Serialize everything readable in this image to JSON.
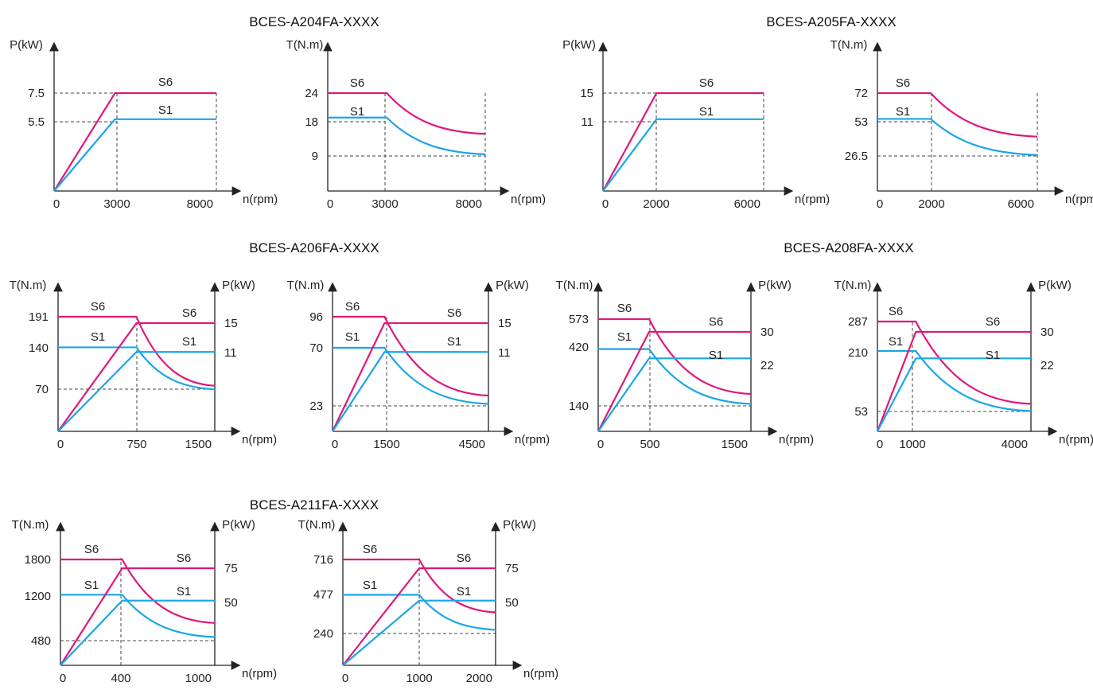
{
  "colors": {
    "s6": "#e0187a",
    "s1": "#1aa6e6",
    "axis": "#222222",
    "guide": "#444444"
  },
  "groups": [
    {
      "title": "BCES-A204FA-XXXX"
    },
    {
      "title": "BCES-A205FA-XXXX"
    },
    {
      "title": "BCES-A206FA-XXXX"
    },
    {
      "title": "BCES-A208FA-XXXX"
    },
    {
      "title": "BCES-A211FA-XXXX"
    }
  ],
  "chart_data": [
    {
      "group": "BCES-A204FA-XXXX",
      "type": "line",
      "y_label": "P(kW)",
      "x_label": "n(rpm)",
      "x_ticks": [
        "0",
        "3000",
        "8000"
      ],
      "y_ticks": [
        "7.5",
        "5.5"
      ],
      "x_range": [
        0,
        8000
      ],
      "series": [
        {
          "name": "S6",
          "x": [
            0,
            3000,
            8000
          ],
          "y": [
            0,
            7.5,
            7.5
          ]
        },
        {
          "name": "S1",
          "x": [
            0,
            3000,
            8000
          ],
          "y": [
            0,
            5.5,
            5.5
          ]
        }
      ]
    },
    {
      "group": "BCES-A204FA-XXXX",
      "type": "line",
      "y_label": "T(N.m)",
      "x_label": "n(rpm)",
      "x_ticks": [
        "0",
        "3000",
        "8000"
      ],
      "y_ticks": [
        "24",
        "18",
        "9"
      ],
      "x_range": [
        0,
        8000
      ],
      "series": [
        {
          "name": "S6",
          "x": [
            0,
            3000,
            8000
          ],
          "y": [
            24,
            24,
            14
          ],
          "curve": "decay"
        },
        {
          "name": "S1",
          "x": [
            0,
            3000,
            8000
          ],
          "y": [
            18,
            18,
            9
          ],
          "curve": "decay"
        }
      ]
    },
    {
      "group": "BCES-A205FA-XXXX",
      "type": "line",
      "y_label": "P(kW)",
      "x_label": "n(rpm)",
      "x_ticks": [
        "0",
        "2000",
        "6000"
      ],
      "y_ticks": [
        "15",
        "11"
      ],
      "x_range": [
        0,
        6000
      ],
      "series": [
        {
          "name": "S6",
          "x": [
            0,
            2000,
            6000
          ],
          "y": [
            0,
            15,
            15
          ]
        },
        {
          "name": "S1",
          "x": [
            0,
            2000,
            6000
          ],
          "y": [
            0,
            11,
            11
          ]
        }
      ]
    },
    {
      "group": "BCES-A205FA-XXXX",
      "type": "line",
      "y_label": "T(N.m)",
      "x_label": "n(rpm)",
      "x_ticks": [
        "0",
        "2000",
        "6000"
      ],
      "y_ticks": [
        "72",
        "53",
        "26.5"
      ],
      "x_range": [
        0,
        6000
      ],
      "series": [
        {
          "name": "S6",
          "x": [
            0,
            2000,
            6000
          ],
          "y": [
            72,
            72,
            40
          ],
          "curve": "decay"
        },
        {
          "name": "S1",
          "x": [
            0,
            2000,
            6000
          ],
          "y": [
            53,
            53,
            26.5
          ],
          "curve": "decay"
        }
      ]
    },
    {
      "group": "BCES-A206FA-XXXX",
      "type": "line",
      "y_label": "T(N.m)",
      "y2_label": "P(kW)",
      "x_label": "n(rpm)",
      "x_ticks": [
        "0",
        "750",
        "1500"
      ],
      "y_ticks": [
        "191",
        "140",
        "70"
      ],
      "y2_ticks": [
        "15",
        "11"
      ],
      "x_range": [
        0,
        1500
      ],
      "series": [
        {
          "name": "S6",
          "axis": "T",
          "x": [
            0,
            750,
            1500
          ],
          "y": [
            191,
            191,
            76
          ],
          "curve": "decay"
        },
        {
          "name": "S1",
          "axis": "T",
          "x": [
            0,
            750,
            1500
          ],
          "y": [
            140,
            140,
            70
          ],
          "curve": "decay"
        },
        {
          "name": "S6",
          "axis": "P",
          "x": [
            0,
            750,
            1500
          ],
          "y": [
            0,
            15,
            15
          ]
        },
        {
          "name": "S1",
          "axis": "P",
          "x": [
            0,
            750,
            1500
          ],
          "y": [
            0,
            11,
            11
          ]
        }
      ]
    },
    {
      "group": "BCES-A206FA-XXXX",
      "type": "line",
      "y_label": "T(N.m)",
      "y2_label": "P(kW)",
      "x_label": "n(rpm)",
      "x_ticks": [
        "0",
        "1500",
        "4500"
      ],
      "y_ticks": [
        "96",
        "70",
        "23"
      ],
      "y2_ticks": [
        "15",
        "11"
      ],
      "x_range": [
        0,
        4500
      ],
      "series": [
        {
          "name": "S6",
          "axis": "T",
          "x": [
            0,
            1500,
            4500
          ],
          "y": [
            96,
            96,
            30
          ],
          "curve": "decay"
        },
        {
          "name": "S1",
          "axis": "T",
          "x": [
            0,
            1500,
            4500
          ],
          "y": [
            70,
            70,
            23
          ],
          "curve": "decay"
        },
        {
          "name": "S6",
          "axis": "P",
          "x": [
            0,
            1500,
            4500
          ],
          "y": [
            0,
            15,
            15
          ]
        },
        {
          "name": "S1",
          "axis": "P",
          "x": [
            0,
            1500,
            4500
          ],
          "y": [
            0,
            11,
            11
          ]
        }
      ]
    },
    {
      "group": "BCES-A208FA-XXXX",
      "type": "line",
      "y_label": "T(N.m)",
      "y2_label": "P(kW)",
      "x_label": "n(rpm)",
      "x_ticks": [
        "0",
        "500",
        "1500"
      ],
      "y_ticks": [
        "573",
        "420",
        "140"
      ],
      "y2_ticks": [
        "30",
        "22"
      ],
      "x_range": [
        0,
        1500
      ],
      "series": [
        {
          "name": "S6",
          "axis": "T",
          "x": [
            0,
            500,
            1500
          ],
          "y": [
            573,
            573,
            191
          ],
          "curve": "decay"
        },
        {
          "name": "S1",
          "axis": "T",
          "x": [
            0,
            500,
            1500
          ],
          "y": [
            420,
            420,
            140
          ],
          "curve": "decay"
        },
        {
          "name": "S6",
          "axis": "P",
          "x": [
            0,
            500,
            1500
          ],
          "y": [
            0,
            30,
            30
          ]
        },
        {
          "name": "S1",
          "axis": "P",
          "x": [
            0,
            500,
            1500
          ],
          "y": [
            0,
            22,
            22
          ]
        }
      ]
    },
    {
      "group": "BCES-A208FA-XXXX",
      "type": "line",
      "y_label": "T(N.m)",
      "y2_label": "P(kW)",
      "x_label": "n(rpm)",
      "x_ticks": [
        "0",
        "1000",
        "4000"
      ],
      "y_ticks": [
        "287",
        "210",
        "53"
      ],
      "y2_ticks": [
        "30",
        "22"
      ],
      "x_range": [
        0,
        4000
      ],
      "series": [
        {
          "name": "S6",
          "axis": "T",
          "x": [
            0,
            1000,
            4000
          ],
          "y": [
            287,
            287,
            72
          ],
          "curve": "decay"
        },
        {
          "name": "S1",
          "axis": "T",
          "x": [
            0,
            1000,
            4000
          ],
          "y": [
            210,
            210,
            53
          ],
          "curve": "decay"
        },
        {
          "name": "S6",
          "axis": "P",
          "x": [
            0,
            1000,
            4000
          ],
          "y": [
            0,
            30,
            30
          ]
        },
        {
          "name": "S1",
          "axis": "P",
          "x": [
            0,
            1000,
            4000
          ],
          "y": [
            0,
            22,
            22
          ]
        }
      ]
    },
    {
      "group": "BCES-A211FA-XXXX",
      "type": "line",
      "y_label": "T(N.m)",
      "y2_label": "P(kW)",
      "x_label": "n(rpm)",
      "x_ticks": [
        "0",
        "400",
        "1000"
      ],
      "y_ticks": [
        "1800",
        "1200",
        "480"
      ],
      "y2_ticks": [
        "75",
        "50"
      ],
      "x_range": [
        0,
        1000
      ],
      "series": [
        {
          "name": "S6",
          "axis": "T",
          "x": [
            0,
            400,
            1000
          ],
          "y": [
            1800,
            1800,
            720
          ],
          "curve": "decay"
        },
        {
          "name": "S1",
          "axis": "T",
          "x": [
            0,
            400,
            1000
          ],
          "y": [
            1200,
            1200,
            480
          ],
          "curve": "decay"
        },
        {
          "name": "S6",
          "axis": "P",
          "x": [
            0,
            400,
            1000
          ],
          "y": [
            0,
            75,
            75
          ]
        },
        {
          "name": "S1",
          "axis": "P",
          "x": [
            0,
            400,
            1000
          ],
          "y": [
            0,
            50,
            50
          ]
        }
      ]
    },
    {
      "group": "BCES-A211FA-XXXX",
      "type": "line",
      "y_label": "T(N.m)",
      "y2_label": "P(kW)",
      "x_label": "n(rpm)",
      "x_ticks": [
        "0",
        "1000",
        "2000"
      ],
      "y_ticks": [
        "716",
        "477",
        "240"
      ],
      "y2_ticks": [
        "75",
        "50"
      ],
      "x_range": [
        0,
        2000
      ],
      "series": [
        {
          "name": "S6",
          "axis": "T",
          "x": [
            0,
            1000,
            2000
          ],
          "y": [
            716,
            716,
            358
          ],
          "curve": "decay"
        },
        {
          "name": "S1",
          "axis": "T",
          "x": [
            0,
            1000,
            2000
          ],
          "y": [
            477,
            477,
            240
          ],
          "curve": "decay"
        },
        {
          "name": "S6",
          "axis": "P",
          "x": [
            0,
            1000,
            2000
          ],
          "y": [
            0,
            75,
            75
          ]
        },
        {
          "name": "S1",
          "axis": "P",
          "x": [
            0,
            1000,
            2000
          ],
          "y": [
            0,
            50,
            50
          ]
        }
      ]
    }
  ]
}
